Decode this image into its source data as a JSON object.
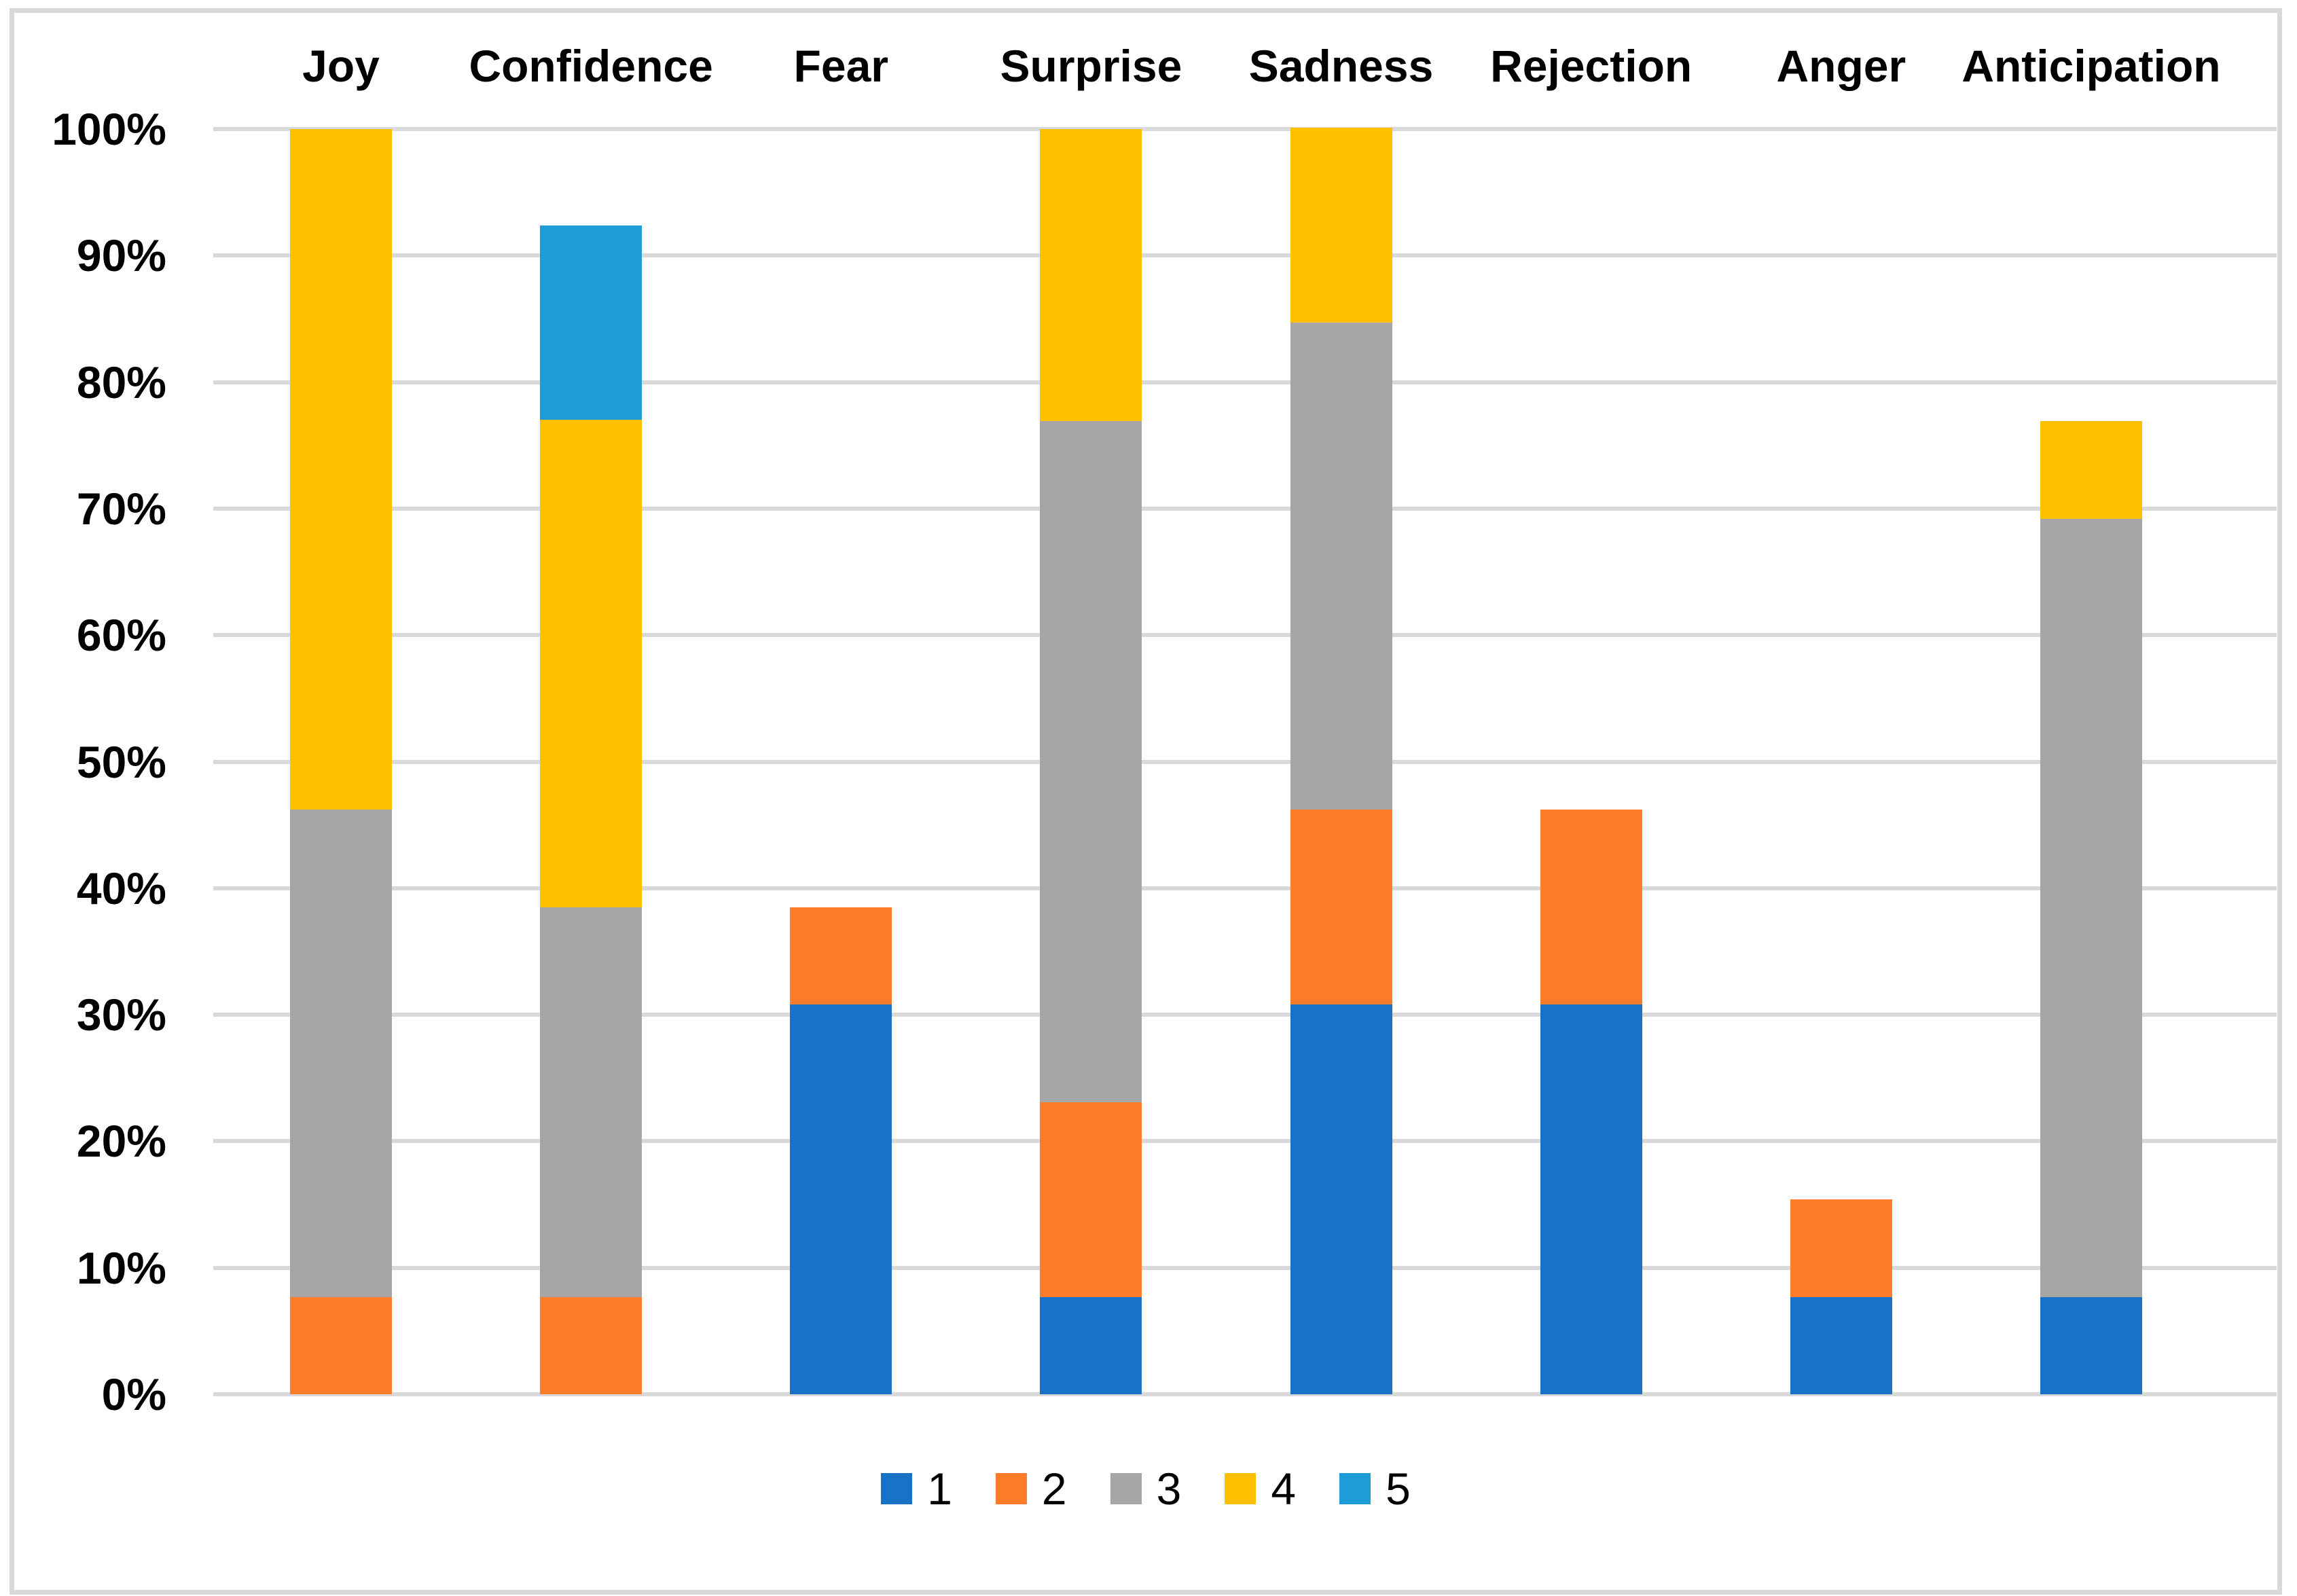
{
  "chart_data": {
    "type": "bar",
    "stacked": true,
    "percent_axis": true,
    "title": "",
    "categories": [
      "Joy",
      "Confidence",
      "Fear",
      "Surprise",
      "Sadness",
      "Rejection",
      "Anger",
      "Anticipation"
    ],
    "series": [
      {
        "name": "1",
        "color": "#1873C8",
        "values": [
          0,
          0,
          30.8,
          7.7,
          30.8,
          30.8,
          7.7,
          7.7
        ]
      },
      {
        "name": "2",
        "color": "#FF7D2A",
        "values": [
          7.7,
          7.7,
          7.7,
          15.4,
          15.4,
          15.4,
          7.7,
          0
        ]
      },
      {
        "name": "3",
        "color": "#A6A6A6",
        "values": [
          38.5,
          30.8,
          0,
          53.8,
          38.5,
          0,
          0,
          61.5
        ]
      },
      {
        "name": "4",
        "color": "#FFC000",
        "values": [
          53.8,
          38.5,
          0,
          23.1,
          15.4,
          0,
          0,
          7.7
        ]
      },
      {
        "name": "5",
        "color": "#1E9CD8",
        "values": [
          0,
          15.4,
          0,
          0,
          0,
          0,
          0,
          0
        ]
      }
    ],
    "bar_totals_percent": [
      100,
      92.3,
      38.5,
      100,
      100,
      46.2,
      15.4,
      76.9
    ],
    "y_axis": {
      "min": 0,
      "max": 100,
      "step": 10,
      "tick_labels": [
        "0%",
        "10%",
        "20%",
        "30%",
        "40%",
        "50%",
        "60%",
        "70%",
        "80%",
        "90%",
        "100%"
      ]
    },
    "legend": {
      "position": "bottom",
      "entries": [
        "1",
        "2",
        "3",
        "4",
        "5"
      ]
    },
    "grid": true,
    "colors": {
      "gridline": "#D9D9D9",
      "frame_border": "#D9D9D9",
      "background": "#FFFFFF",
      "text": "#000000"
    }
  }
}
